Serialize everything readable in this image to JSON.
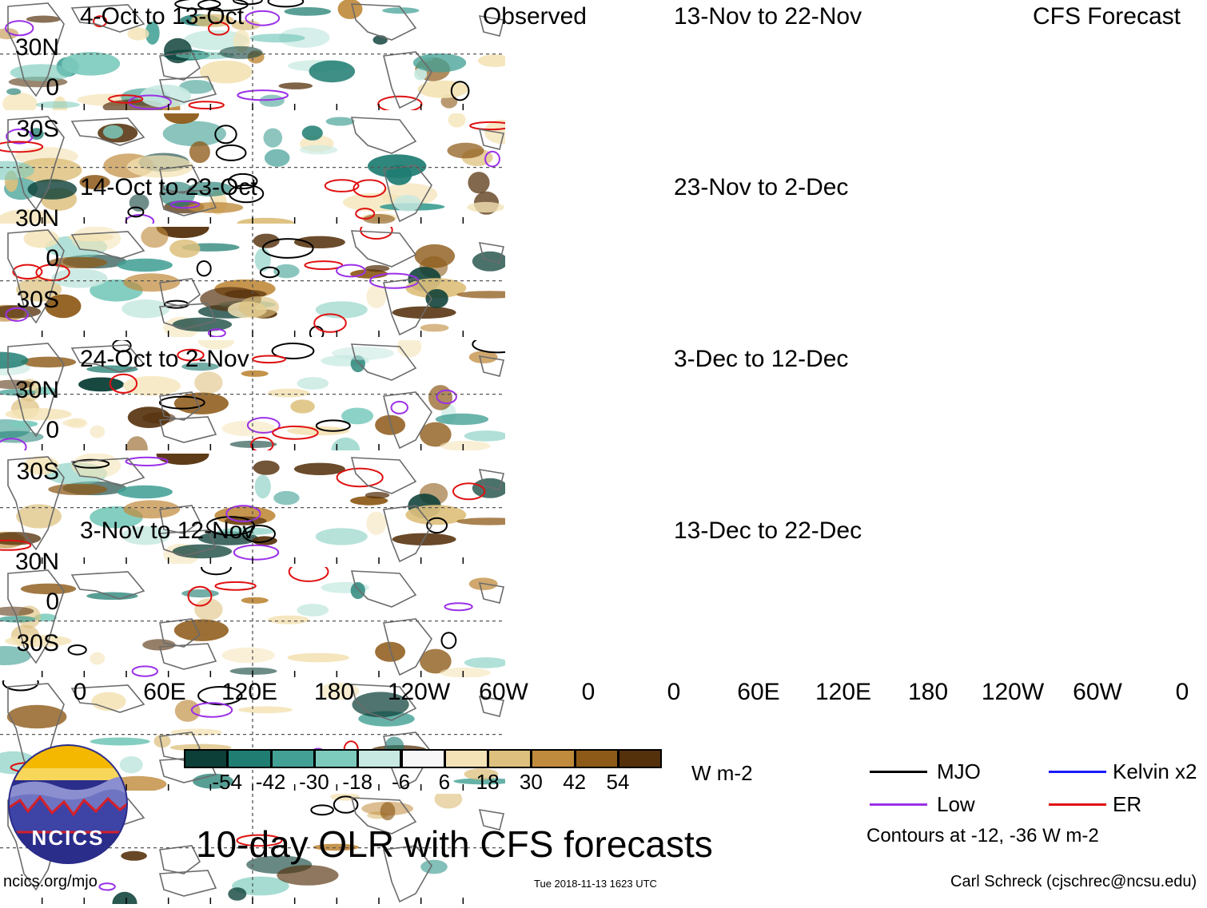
{
  "panels_left": [
    {
      "title": "4-Oct to 13-Oct",
      "corner": "Observed"
    },
    {
      "title": "14-Oct to 23-Oct",
      "corner": ""
    },
    {
      "title": "24-Oct to 2-Nov",
      "corner": ""
    },
    {
      "title": "3-Nov to 12-Nov",
      "corner": ""
    }
  ],
  "panels_right": [
    {
      "title": "13-Nov to 22-Nov",
      "corner": "CFS Forecast"
    },
    {
      "title": "23-Nov to 2-Dec",
      "corner": ""
    },
    {
      "title": "3-Dec to 12-Dec",
      "corner": ""
    },
    {
      "title": "13-Dec to 22-Dec",
      "corner": ""
    }
  ],
  "lat_labels": [
    "30N",
    "0",
    "30S"
  ],
  "lon_labels": [
    "0",
    "60E",
    "120E",
    "180",
    "120W",
    "60W",
    "0"
  ],
  "colorbar": {
    "colors": [
      "#0c3f37",
      "#1f7d72",
      "#42a095",
      "#7ccbbd",
      "#c7e9e1",
      "#f7f7f7",
      "#f4e3b6",
      "#ddc07d",
      "#c08b3d",
      "#8d5a18",
      "#54300b"
    ],
    "labels": [
      "-54",
      "-42",
      "-30",
      "-18",
      "-6",
      "6",
      "18",
      "30",
      "42",
      "54"
    ],
    "units": "W m-2"
  },
  "legend": {
    "mjo": {
      "label": "MJO",
      "color": "#000000"
    },
    "kelvin": {
      "label": "Kelvin x2",
      "color": "#1a1aff"
    },
    "low": {
      "label": "Low",
      "color": "#9b30e8"
    },
    "er": {
      "label": "ER",
      "color": "#e01010"
    },
    "contours_note": "Contours at -12, -36 W m-2"
  },
  "logo": {
    "text": "NCICS"
  },
  "main_title": "10-day OLR with CFS forecasts",
  "footer": {
    "left": "ncics.org/mjo",
    "center": "Tue 2018-11-13 1623 UTC",
    "right": "Carl Schreck (cjschrec@ncsu.edu)"
  }
}
